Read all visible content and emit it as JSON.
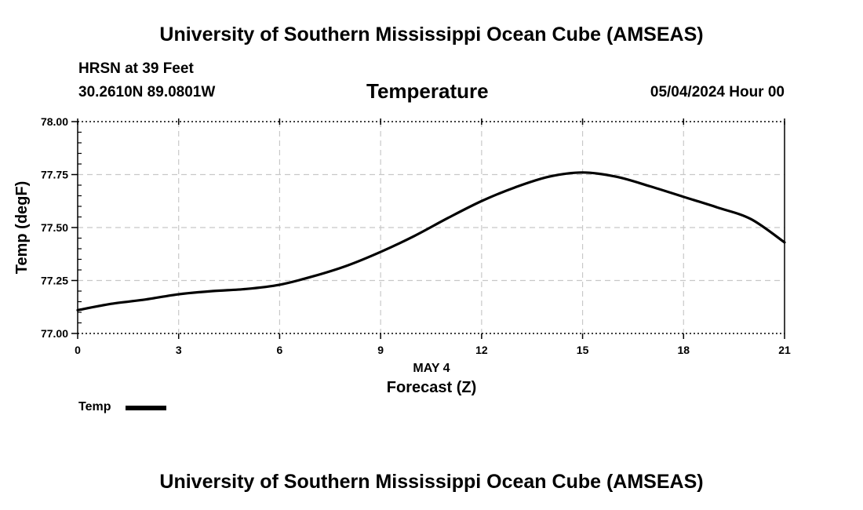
{
  "header": {
    "title_top": "University of Southern Mississippi Ocean Cube (AMSEAS)",
    "station": "HRSN at 39 Feet",
    "location": "30.2610N  89.0801W",
    "variable": "Temperature",
    "datetime": "05/04/2024 Hour 00",
    "title_bottom": "University of Southern Mississippi Ocean Cube (AMSEAS)"
  },
  "legend": {
    "label": "Temp"
  },
  "colors": {
    "line": "#000000",
    "grid": "#c8c8c8",
    "axis": "#000000"
  },
  "chart_data": {
    "type": "line",
    "title": "Temperature",
    "xlabel": "Forecast (Z)",
    "xlabel_date": "MAY 4",
    "ylabel": "Temp (degF)",
    "xlim": [
      0,
      21
    ],
    "ylim": [
      77.0,
      78.0
    ],
    "xticks": [
      0,
      3,
      6,
      9,
      12,
      15,
      18,
      21
    ],
    "xtick_labels": [
      "0",
      "3",
      "6",
      "9",
      "12",
      "15",
      "18",
      "21"
    ],
    "yticks": [
      77.0,
      77.25,
      77.5,
      77.75,
      78.0
    ],
    "ytick_labels": [
      "77.00",
      "77.25",
      "77.50",
      "77.75",
      "78.00"
    ],
    "grid": true,
    "series": [
      {
        "name": "Temp",
        "x": [
          0,
          1,
          2,
          3,
          4,
          5,
          6,
          7,
          8,
          9,
          10,
          11,
          12,
          13,
          14,
          15,
          16,
          17,
          18,
          19,
          20,
          21
        ],
        "values": [
          77.11,
          77.14,
          77.16,
          77.185,
          77.2,
          77.21,
          77.23,
          77.27,
          77.32,
          77.385,
          77.46,
          77.545,
          77.625,
          77.69,
          77.74,
          77.76,
          77.74,
          77.695,
          77.645,
          77.595,
          77.54,
          77.43
        ]
      }
    ]
  }
}
